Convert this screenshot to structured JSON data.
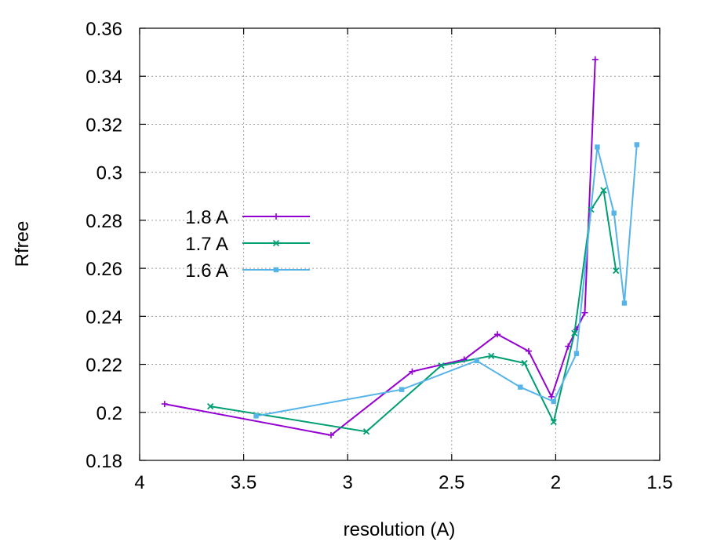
{
  "chart_data": {
    "type": "line",
    "title": "",
    "xlabel": "resolution (A)",
    "ylabel": "Rfree",
    "xlim": [
      4,
      1.5
    ],
    "ylim": [
      0.18,
      0.36
    ],
    "x_reversed": true,
    "xticks": [
      4,
      3.5,
      3,
      2.5,
      2,
      1.5
    ],
    "xtick_labels": [
      "4",
      "3.5",
      "3",
      "2.5",
      "2",
      "1.5"
    ],
    "yticks": [
      0.18,
      0.2,
      0.22,
      0.24,
      0.26,
      0.28,
      0.3,
      0.32,
      0.34,
      0.36
    ],
    "ytick_labels": [
      "0.18",
      "0.2",
      "0.22",
      "0.24",
      "0.26",
      "0.28",
      "0.3",
      "0.32",
      "0.34",
      "0.36"
    ],
    "grid": true,
    "legend_position": "center-left",
    "series": [
      {
        "name": "1.8 A",
        "color": "#9400d3",
        "marker": "plus",
        "x": [
          3.88,
          3.08,
          2.69,
          2.44,
          2.28,
          2.13,
          2.02,
          1.94,
          1.9,
          1.86,
          1.81
        ],
        "y": [
          0.2035,
          0.1905,
          0.217,
          0.222,
          0.2325,
          0.2255,
          0.2065,
          0.2275,
          0.2345,
          0.2415,
          0.347
        ]
      },
      {
        "name": "1.7 A",
        "color": "#009e73",
        "marker": "cross",
        "x": [
          3.66,
          2.91,
          2.55,
          2.31,
          2.15,
          2.01,
          1.91,
          1.83,
          1.77,
          1.71
        ],
        "y": [
          0.2025,
          0.192,
          0.2195,
          0.2235,
          0.2205,
          0.196,
          0.233,
          0.2845,
          0.2925,
          0.259
        ]
      },
      {
        "name": "1.6 A",
        "color": "#56b4e9",
        "marker": "square",
        "x": [
          3.44,
          2.74,
          2.38,
          2.17,
          2.01,
          1.9,
          1.8,
          1.72,
          1.67,
          1.61
        ],
        "y": [
          0.1985,
          0.2095,
          0.2215,
          0.2105,
          0.2045,
          0.2245,
          0.3105,
          0.283,
          0.2455,
          0.3115
        ]
      }
    ]
  }
}
